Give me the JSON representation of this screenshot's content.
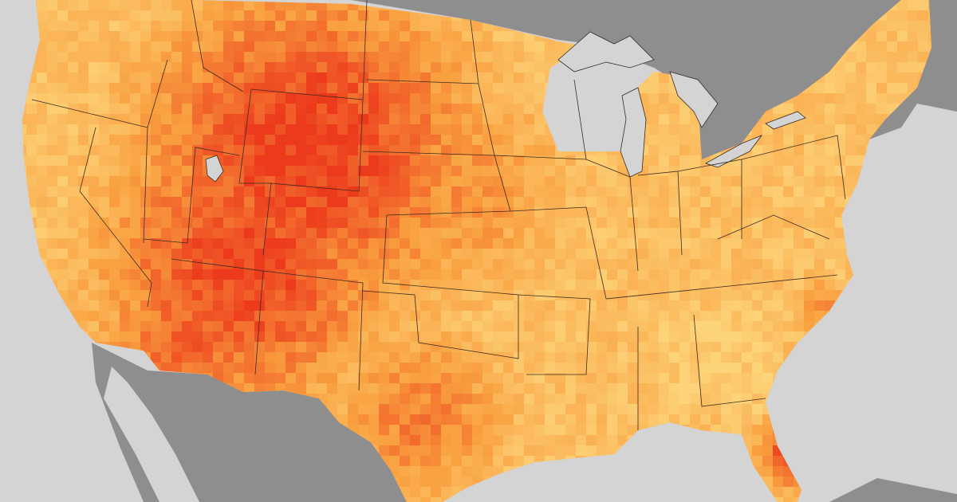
{
  "map": {
    "colors": {
      "water": "#d4d4d4",
      "foreign_land": "#8e8e8e",
      "border": "#3a2a20",
      "scale_cool": "#fdd47a",
      "scale_mid": "#f9a040",
      "scale_hot": "#ec3a1c"
    }
  }
}
